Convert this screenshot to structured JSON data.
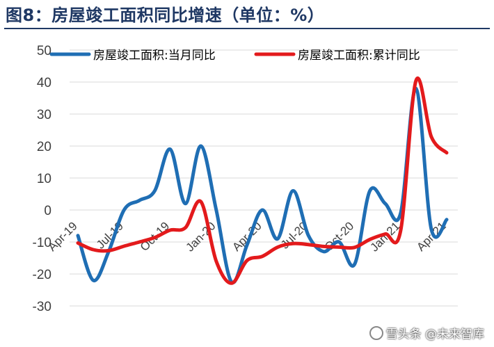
{
  "title": "图8：房屋竣工面积同比增速（单位：%）",
  "watermark": "雪头条 @未来智库",
  "colors": {
    "series_monthly": "#1f6eb4",
    "series_cumulative": "#e31a1c",
    "grid": "#d9d9d9",
    "axis_text": "#404040",
    "title": "#1f3864"
  },
  "chart_data": {
    "type": "line",
    "x": [
      "Apr-19",
      "May-19",
      "Jun-19",
      "Jul-19",
      "Aug-19",
      "Sep-19",
      "Oct-19",
      "Nov-19",
      "Dec-19",
      "Jan-20",
      "Feb-20",
      "Mar-20",
      "Apr-20",
      "May-20",
      "Jun-20",
      "Jul-20",
      "Aug-20",
      "Sep-20",
      "Oct-20",
      "Nov-20",
      "Dec-20",
      "Jan-21",
      "Feb-21",
      "Mar-21",
      "Apr-21"
    ],
    "x_tick_labels": [
      "Apr-19",
      "Jul-19",
      "Oct-19",
      "Jan-20",
      "Apr-20",
      "Jul-20",
      "Oct-20",
      "Jan-21",
      "Apr-21"
    ],
    "ylim": [
      -30,
      50
    ],
    "yticks": [
      -30,
      -20,
      -10,
      0,
      10,
      20,
      30,
      40,
      50
    ],
    "grid": true,
    "legend_position": "top",
    "series": [
      {
        "name": "房屋竣工面积:当月同比",
        "values": [
          -8,
          -22,
          -13,
          0,
          3,
          6,
          19,
          2,
          20,
          0,
          -22.5,
          -11,
          0,
          -9,
          6,
          -8,
          -13,
          -10,
          -17,
          6,
          2,
          -1,
          38,
          -6,
          -3
        ]
      },
      {
        "name": "房屋竣工面积:累计同比",
        "values": [
          -10.3,
          -12.4,
          -12.7,
          -11.3,
          -10.0,
          -8.6,
          -6.3,
          -5.5,
          2.6,
          -16.0,
          -22.9,
          -15.8,
          -14.5,
          -11.6,
          -10.5,
          -10.8,
          -11.4,
          -11.6,
          -11.7,
          -9.2,
          -7.5,
          -6.5,
          40.4,
          22.9,
          17.9
        ]
      }
    ]
  }
}
